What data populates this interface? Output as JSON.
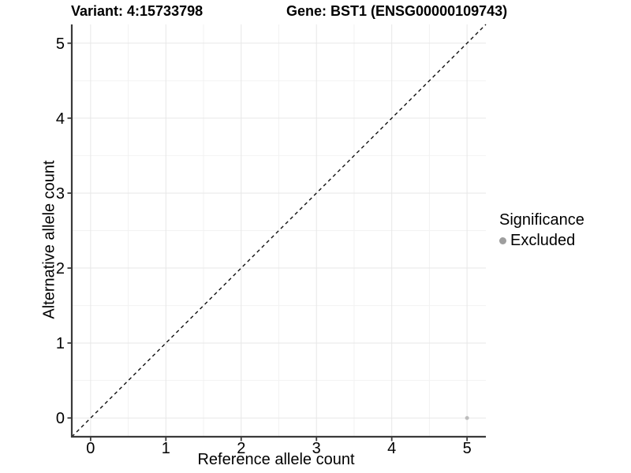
{
  "chart_data": {
    "type": "scatter",
    "title_variant": "Variant: 4:15733798",
    "title_gene": "Gene: BST1 (ENSG00000109743)",
    "xlabel": "Reference allele count",
    "ylabel": "Alternative allele count",
    "xlim": [
      -0.25,
      5.25
    ],
    "ylim": [
      -0.25,
      5.25
    ],
    "x_ticks": [
      0,
      1,
      2,
      3,
      4,
      5
    ],
    "y_ticks": [
      0,
      1,
      2,
      3,
      4,
      5
    ],
    "minor_ticks": [
      0.5,
      1.5,
      2.5,
      3.5,
      4.5
    ],
    "grid": true,
    "identity_line": {
      "style": "dashed",
      "x1": -0.25,
      "y1": -0.25,
      "x2": 5.25,
      "y2": 5.25,
      "color": "#111111"
    },
    "series": [
      {
        "name": "Excluded",
        "points": [
          {
            "x": 5,
            "y": 0
          }
        ],
        "color": "#bdbdbd"
      }
    ],
    "legend": {
      "title": "Significance",
      "position": "right",
      "items": [
        {
          "label": "Excluded",
          "color": "#9e9e9e"
        }
      ]
    },
    "colors": {
      "grid_major": "#e7e7e7",
      "grid_minor": "#f2f2f2",
      "axis_line": "#3a3a3a",
      "tick_text": "#000000"
    }
  }
}
